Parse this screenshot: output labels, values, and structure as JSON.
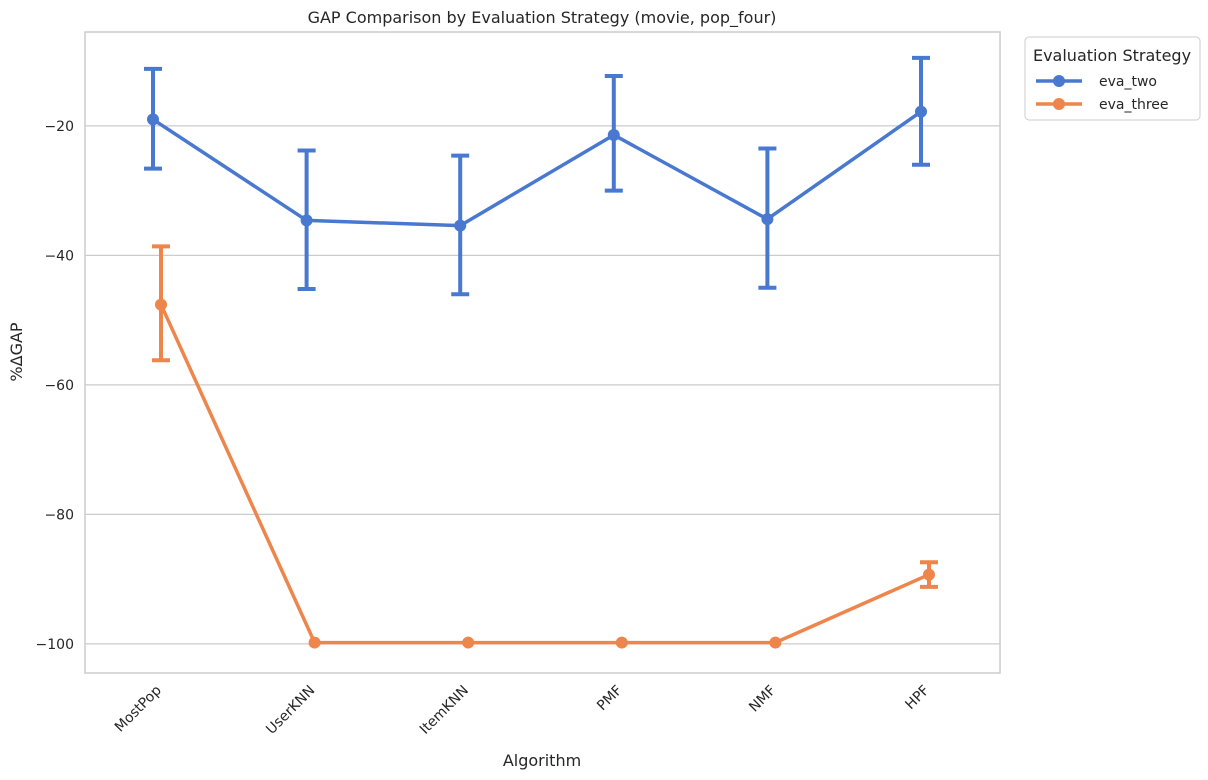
{
  "chart_data": {
    "type": "line",
    "title": "GAP Comparison by Evaluation Strategy (movie, pop_four)",
    "xlabel": "Algorithm",
    "ylabel": "%ΔGAP",
    "categories": [
      "MostPop",
      "UserKNN",
      "ItemKNN",
      "PMF",
      "NMF",
      "HPF"
    ],
    "ylim": [
      -104.5,
      -5.5
    ],
    "yticks": [
      -20,
      -40,
      -60,
      -80,
      -100
    ],
    "ytick_labels": [
      "−20",
      "−40",
      "−60",
      "−80",
      "−100"
    ],
    "grid": "horizontal",
    "legend": {
      "title": "Evaluation Strategy",
      "placement": "outside-top-right"
    },
    "series": [
      {
        "name": "eva_two",
        "color": "#4878d0",
        "values": [
          -19.0,
          -34.6,
          -35.4,
          -21.4,
          -34.4,
          -17.8
        ],
        "err_low": [
          -26.6,
          -45.2,
          -46.0,
          -30.0,
          -45.0,
          -26.0
        ],
        "err_high": [
          -11.2,
          -23.8,
          -24.6,
          -12.3,
          -23.5,
          -9.5
        ]
      },
      {
        "name": "eva_three",
        "color": "#ee854a",
        "values": [
          -47.6,
          -99.8,
          -99.8,
          -99.8,
          -99.8,
          -89.3
        ],
        "err_low": [
          -56.2,
          -99.8,
          -99.8,
          -99.8,
          -99.8,
          -91.2
        ],
        "err_high": [
          -38.6,
          -99.8,
          -99.8,
          -99.8,
          -99.8,
          -87.4
        ]
      }
    ]
  }
}
